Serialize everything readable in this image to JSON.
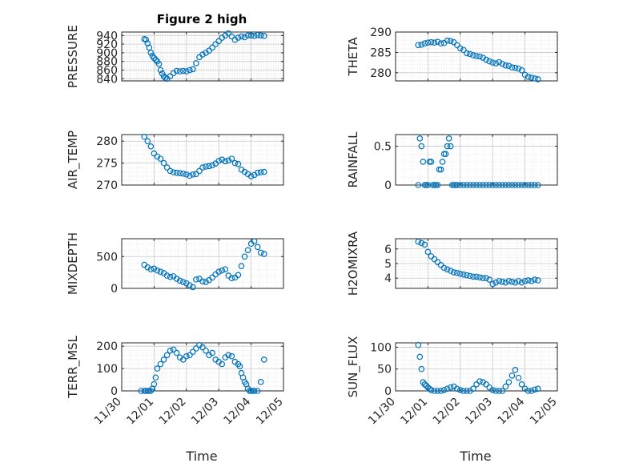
{
  "chart_data": {
    "type": "scatter",
    "title": "Figure 2 high",
    "xlabel": "Time",
    "x_tick_labels": [
      "11/30",
      "12/01",
      "12/02",
      "12/03",
      "12/04",
      "12/05"
    ],
    "marker_color": "#0072BD",
    "panels": [
      {
        "name": "pressure",
        "ylabel": "PRESSURE",
        "ylim": [
          835,
          948
        ],
        "yticks": [
          "840",
          "860",
          "880",
          "900",
          "920",
          "940"
        ],
        "t": [
          0.7,
          0.75,
          0.8,
          0.85,
          0.9,
          0.95,
          1.0,
          1.05,
          1.1,
          1.15,
          1.2,
          1.25,
          1.3,
          1.35,
          1.4,
          1.5,
          1.6,
          1.7,
          1.8,
          1.9,
          2.0,
          2.1,
          2.2,
          2.3,
          2.4,
          2.5,
          2.6,
          2.7,
          2.8,
          2.9,
          3.0,
          3.1,
          3.2,
          3.3,
          3.4,
          3.5,
          3.6,
          3.7,
          3.8,
          3.9,
          4.0,
          4.1,
          4.2,
          4.3,
          4.4
        ],
        "y": [
          932,
          930,
          922,
          912,
          900,
          893,
          888,
          884,
          880,
          874,
          860,
          852,
          846,
          842,
          840,
          846,
          853,
          858,
          857,
          858,
          857,
          860,
          862,
          876,
          890,
          896,
          900,
          905,
          912,
          920,
          927,
          935,
          940,
          945,
          938,
          930,
          935,
          938,
          936,
          940,
          940,
          939,
          941,
          940,
          939
        ]
      },
      {
        "name": "theta",
        "ylabel": "THETA",
        "ylim": [
          278,
          290
        ],
        "yticks": [
          "280",
          "285",
          "290"
        ],
        "t": [
          0.7,
          0.8,
          0.9,
          1.0,
          1.1,
          1.2,
          1.3,
          1.4,
          1.5,
          1.6,
          1.7,
          1.8,
          1.9,
          2.0,
          2.1,
          2.2,
          2.3,
          2.4,
          2.5,
          2.6,
          2.7,
          2.8,
          2.9,
          3.0,
          3.1,
          3.2,
          3.3,
          3.4,
          3.5,
          3.6,
          3.7,
          3.8,
          3.9,
          4.0,
          4.1,
          4.2,
          4.3,
          4.4
        ],
        "y": [
          286.8,
          286.9,
          287.2,
          287.4,
          287.5,
          287.4,
          287.6,
          287.2,
          287.3,
          287.9,
          287.8,
          287.5,
          286.8,
          286.0,
          285.6,
          284.8,
          284.6,
          284.3,
          284.1,
          284.0,
          283.7,
          283.2,
          282.8,
          282.5,
          282.3,
          282.6,
          282.2,
          281.8,
          281.7,
          281.3,
          281.2,
          281.0,
          280.6,
          279.5,
          279.0,
          278.8,
          278.6,
          278.4
        ]
      },
      {
        "name": "air_temp",
        "ylabel": "AIR_TEMP",
        "ylim": [
          270,
          281.5
        ],
        "yticks": [
          "270",
          "275",
          "280"
        ],
        "t": [
          0.7,
          0.8,
          0.9,
          1.0,
          1.1,
          1.2,
          1.3,
          1.4,
          1.5,
          1.6,
          1.7,
          1.8,
          1.9,
          2.0,
          2.1,
          2.2,
          2.3,
          2.4,
          2.5,
          2.6,
          2.7,
          2.8,
          2.9,
          3.0,
          3.1,
          3.2,
          3.3,
          3.4,
          3.5,
          3.6,
          3.7,
          3.8,
          3.9,
          4.0,
          4.1,
          4.2,
          4.3,
          4.4
        ],
        "y": [
          281.0,
          280.0,
          278.8,
          277.2,
          276.5,
          276.0,
          275.0,
          274.0,
          273.2,
          272.9,
          272.8,
          272.7,
          272.6,
          272.4,
          272.1,
          272.4,
          272.5,
          273.2,
          274.0,
          274.2,
          274.3,
          274.5,
          274.9,
          275.5,
          275.8,
          275.4,
          275.6,
          276.0,
          275.0,
          274.8,
          273.5,
          273.0,
          272.5,
          272.0,
          272.3,
          272.8,
          272.9,
          273.0
        ]
      },
      {
        "name": "rainfall",
        "ylabel": "RAINFALL",
        "ylim": [
          0,
          0.65
        ],
        "yticks": [
          "0",
          "0.5"
        ],
        "t": [
          0.7,
          0.75,
          0.8,
          0.85,
          0.9,
          0.95,
          1.0,
          1.05,
          1.1,
          1.15,
          1.2,
          1.25,
          1.3,
          1.35,
          1.4,
          1.45,
          1.5,
          1.55,
          1.6,
          1.65,
          1.7,
          1.75,
          1.8,
          1.85,
          1.9,
          2.0,
          2.1,
          2.2,
          2.3,
          2.4,
          2.5,
          2.6,
          2.7,
          2.8,
          2.9,
          3.0,
          3.1,
          3.2,
          3.3,
          3.4,
          3.5,
          3.6,
          3.7,
          3.8,
          3.9,
          4.0,
          4.1,
          4.2,
          4.3,
          4.4
        ],
        "y": [
          0,
          0.6,
          0.5,
          0.3,
          0,
          0,
          0,
          0.3,
          0.3,
          0,
          0,
          0,
          0,
          0.2,
          0.2,
          0.3,
          0.4,
          0.4,
          0.5,
          0.6,
          0.5,
          0,
          0,
          0,
          0,
          0,
          0,
          0,
          0,
          0,
          0,
          0,
          0,
          0,
          0,
          0,
          0,
          0,
          0,
          0,
          0,
          0,
          0,
          0,
          0,
          0,
          0,
          0,
          0,
          0
        ]
      },
      {
        "name": "mixdepth",
        "ylabel": "MIXDEPTH",
        "ylim": [
          0,
          780
        ],
        "yticks": [
          "0",
          "500"
        ],
        "t": [
          0.7,
          0.8,
          0.9,
          1.0,
          1.1,
          1.2,
          1.3,
          1.4,
          1.5,
          1.6,
          1.7,
          1.8,
          1.9,
          2.0,
          2.1,
          2.2,
          2.3,
          2.4,
          2.5,
          2.6,
          2.7,
          2.8,
          2.9,
          3.0,
          3.1,
          3.2,
          3.3,
          3.4,
          3.5,
          3.6,
          3.7,
          3.8,
          3.9,
          4.0,
          4.1,
          4.2,
          4.3,
          4.4
        ],
        "y": [
          370,
          330,
          300,
          310,
          280,
          260,
          240,
          200,
          180,
          190,
          150,
          120,
          100,
          80,
          50,
          20,
          140,
          150,
          110,
          100,
          130,
          170,
          220,
          260,
          280,
          300,
          200,
          160,
          170,
          210,
          350,
          500,
          600,
          700,
          740,
          650,
          560,
          540
        ]
      },
      {
        "name": "h2omixra",
        "ylabel": "H2OMIXRA",
        "ylim": [
          3.3,
          6.7
        ],
        "yticks": [
          "4",
          "5",
          "6"
        ],
        "t": [
          0.7,
          0.8,
          0.9,
          1.0,
          1.1,
          1.2,
          1.3,
          1.4,
          1.5,
          1.6,
          1.7,
          1.8,
          1.9,
          2.0,
          2.1,
          2.2,
          2.3,
          2.4,
          2.5,
          2.6,
          2.7,
          2.8,
          2.9,
          3.0,
          3.1,
          3.2,
          3.3,
          3.4,
          3.5,
          3.6,
          3.7,
          3.8,
          3.9,
          4.0,
          4.1,
          4.2,
          4.3,
          4.4
        ],
        "y": [
          6.5,
          6.4,
          6.3,
          5.8,
          5.5,
          5.3,
          5.1,
          4.9,
          4.7,
          4.6,
          4.5,
          4.4,
          4.35,
          4.3,
          4.25,
          4.2,
          4.15,
          4.1,
          4.1,
          4.05,
          4.0,
          4.0,
          3.9,
          3.6,
          3.7,
          3.8,
          3.75,
          3.7,
          3.8,
          3.75,
          3.7,
          3.8,
          3.7,
          3.8,
          3.85,
          3.8,
          3.9,
          3.85
        ]
      },
      {
        "name": "terr_msl",
        "ylabel": "TERR_MSL",
        "ylim": [
          0,
          215
        ],
        "yticks": [
          "0",
          "100",
          "200"
        ],
        "t": [
          0.6,
          0.7,
          0.75,
          0.8,
          0.85,
          0.9,
          0.95,
          1.0,
          1.05,
          1.1,
          1.2,
          1.3,
          1.4,
          1.5,
          1.6,
          1.7,
          1.8,
          1.9,
          2.0,
          2.1,
          2.2,
          2.3,
          2.4,
          2.5,
          2.6,
          2.7,
          2.8,
          2.9,
          3.0,
          3.1,
          3.2,
          3.3,
          3.4,
          3.5,
          3.6,
          3.65,
          3.7,
          3.75,
          3.8,
          3.85,
          3.9,
          3.95,
          4.0,
          4.05,
          4.1,
          4.2,
          4.3,
          4.4
        ],
        "y": [
          0,
          0,
          0,
          0,
          0,
          0,
          10,
          30,
          60,
          100,
          120,
          140,
          160,
          180,
          185,
          170,
          150,
          140,
          155,
          160,
          175,
          190,
          205,
          195,
          180,
          160,
          170,
          140,
          130,
          120,
          150,
          160,
          155,
          130,
          120,
          110,
          80,
          60,
          40,
          30,
          10,
          0,
          0,
          0,
          0,
          0,
          40,
          140
        ]
      },
      {
        "name": "sun_flux",
        "ylabel": "SUN_FLUX",
        "ylim": [
          0,
          110
        ],
        "yticks": [
          "0",
          "50",
          "100"
        ],
        "t": [
          0.7,
          0.75,
          0.8,
          0.85,
          0.9,
          0.95,
          1.0,
          1.05,
          1.1,
          1.2,
          1.3,
          1.4,
          1.5,
          1.6,
          1.7,
          1.8,
          1.9,
          2.0,
          2.1,
          2.2,
          2.3,
          2.4,
          2.5,
          2.6,
          2.7,
          2.8,
          2.9,
          3.0,
          3.1,
          3.2,
          3.3,
          3.4,
          3.5,
          3.6,
          3.7,
          3.8,
          3.9,
          4.0,
          4.1,
          4.2,
          4.3,
          4.4
        ],
        "y": [
          105,
          78,
          50,
          20,
          15,
          12,
          8,
          5,
          2,
          0,
          0,
          0,
          2,
          5,
          8,
          10,
          5,
          2,
          0,
          0,
          0,
          5,
          15,
          22,
          20,
          15,
          8,
          2,
          0,
          0,
          0,
          10,
          20,
          35,
          48,
          30,
          15,
          5,
          0,
          0,
          3,
          5
        ]
      }
    ]
  }
}
